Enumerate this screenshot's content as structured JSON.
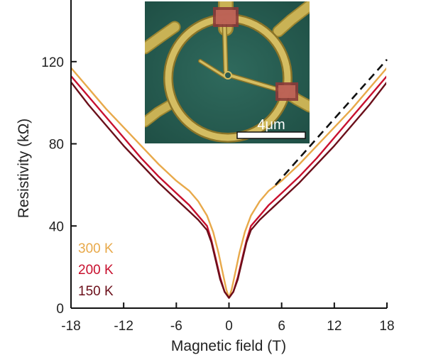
{
  "chart_data": {
    "type": "line",
    "title": "",
    "xlabel": "Magnetic field (T)",
    "ylabel": "Resistivity (kΩ)",
    "xlim": [
      -18,
      18
    ],
    "ylim": [
      0,
      150
    ],
    "xticks": [
      -18,
      -12,
      -6,
      0,
      6,
      12,
      18
    ],
    "yticks": [
      0,
      40,
      80,
      120
    ],
    "grid": false,
    "legend_position": "bottom-left",
    "series": [
      {
        "name": "300 K",
        "color": "#e8a94a",
        "x": [
          -18,
          -16,
          -14,
          -12,
          -10,
          -8,
          -6,
          -4.5,
          -3.5,
          -2.5,
          -1.8,
          -1.2,
          -0.7,
          -0.3,
          0,
          0.3,
          0.7,
          1.2,
          1.8,
          2.5,
          3.5,
          4.5,
          6,
          8,
          10,
          12,
          14,
          16,
          18
        ],
        "y": [
          117,
          107,
          97,
          88,
          79,
          70,
          62,
          57,
          52,
          45,
          37,
          27,
          17,
          9,
          5,
          9,
          17,
          27,
          37,
          45,
          52,
          57,
          62,
          70,
          79,
          88,
          97,
          107,
          117
        ]
      },
      {
        "name": "200 K",
        "color": "#c8102e",
        "x": [
          -18,
          -16,
          -14,
          -12,
          -10,
          -8,
          -6,
          -4.5,
          -3.5,
          -2.5,
          -2.0,
          -1.5,
          -1.0,
          -0.5,
          0,
          0.5,
          1.0,
          1.5,
          2.0,
          2.5,
          3.5,
          4.5,
          6,
          8,
          10,
          12,
          14,
          16,
          18
        ],
        "y": [
          113,
          103,
          93,
          83,
          73,
          64,
          56,
          50,
          45,
          40,
          33,
          24,
          15,
          8,
          5,
          8,
          15,
          24,
          33,
          40,
          45,
          50,
          56,
          64,
          73,
          83,
          93,
          103,
          113
        ]
      },
      {
        "name": "150 K",
        "color": "#6b0f1a",
        "x": [
          -18,
          -16,
          -14,
          -12,
          -10,
          -8,
          -6,
          -4.5,
          -3.5,
          -2.5,
          -2.0,
          -1.5,
          -1.0,
          -0.5,
          0,
          0.5,
          1.0,
          1.5,
          2.0,
          2.5,
          3.5,
          4.5,
          6,
          8,
          10,
          12,
          14,
          16,
          18
        ],
        "y": [
          110,
          99,
          89,
          79,
          70,
          61,
          53,
          47,
          43,
          38,
          32,
          23,
          14,
          8,
          5,
          8,
          14,
          23,
          32,
          38,
          43,
          47,
          53,
          61,
          70,
          79,
          89,
          99,
          110
        ]
      }
    ],
    "annotations": [
      {
        "type": "dashed-line",
        "name": "linear guide",
        "x": [
          5.3,
          18
        ],
        "y": [
          60,
          121
        ]
      }
    ],
    "inset": {
      "description": "micrograph",
      "scale_bar_label": "4μm"
    }
  }
}
